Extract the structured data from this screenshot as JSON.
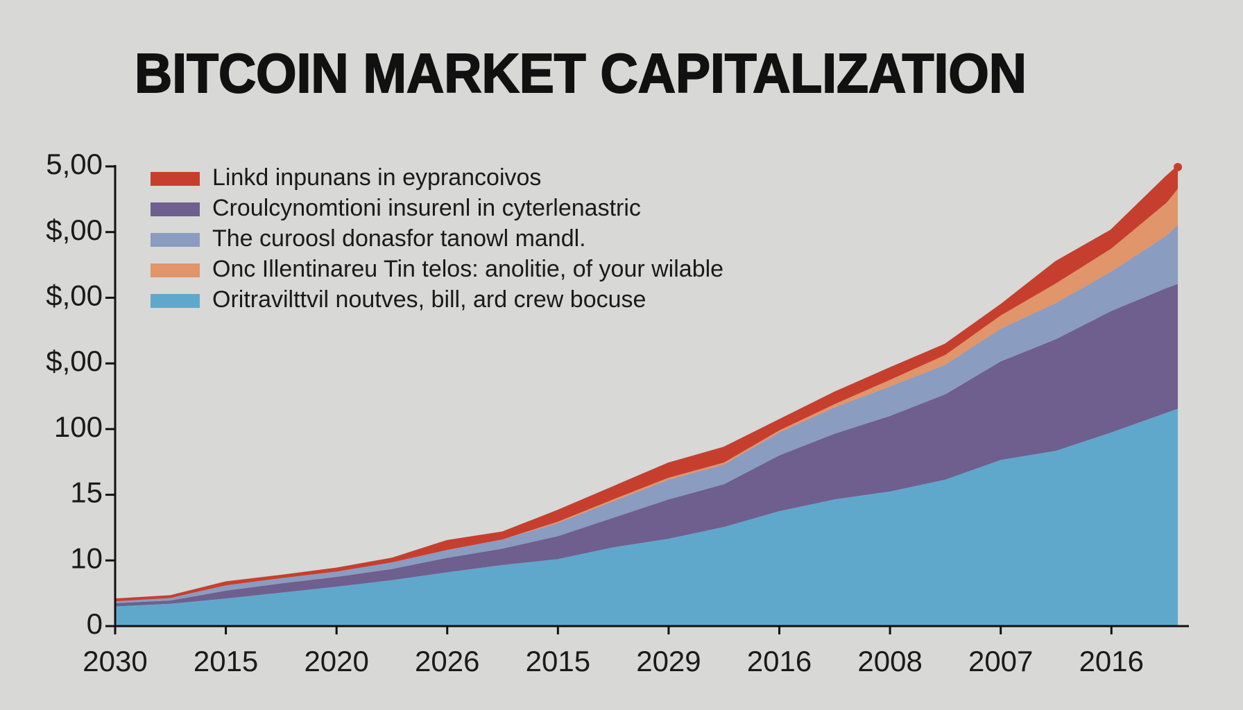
{
  "chart_data": {
    "type": "stacked_area",
    "title": "BITCOIN MARKET CAPITALIZATION",
    "x": [
      0,
      0.5,
      1,
      1.5,
      2,
      2.5,
      3,
      3.5,
      4,
      4.5,
      5,
      5.5,
      6,
      6.5,
      7,
      7.5,
      8,
      8.5,
      9,
      9.5,
      9.6
    ],
    "xlim": [
      0,
      9.7
    ],
    "xticks": [
      {
        "value": 0,
        "label": "2030"
      },
      {
        "value": 1,
        "label": "2015"
      },
      {
        "value": 2,
        "label": "2020"
      },
      {
        "value": 3,
        "label": "2026"
      },
      {
        "value": 4,
        "label": "2015"
      },
      {
        "value": 5,
        "label": "2029"
      },
      {
        "value": 6,
        "label": "2016"
      },
      {
        "value": 7,
        "label": "2008"
      },
      {
        "value": 8,
        "label": "2007"
      },
      {
        "value": 9,
        "label": "2016"
      }
    ],
    "ylim": [
      0,
      7
    ],
    "yticks": [
      {
        "value": 0,
        "label": "0"
      },
      {
        "value": 1,
        "label": "10"
      },
      {
        "value": 2,
        "label": "15"
      },
      {
        "value": 3,
        "label": "100"
      },
      {
        "value": 4,
        "label": "$,00"
      },
      {
        "value": 5,
        "label": "$,00"
      },
      {
        "value": 6,
        "label": "$,00"
      },
      {
        "value": 7,
        "label": "5,00"
      }
    ],
    "stack_order": [
      4,
      1,
      2,
      3,
      0
    ],
    "series": [
      {
        "name": "Linkd inpunans in eyprancoivos",
        "color": "#c63f2e",
        "values": [
          0.02,
          0.02,
          0.04,
          0.03,
          0.04,
          0.05,
          0.13,
          0.1,
          0.16,
          0.18,
          0.21,
          0.22,
          0.15,
          0.17,
          0.17,
          0.15,
          0.15,
          0.32,
          0.27,
          0.39,
          0.33
        ]
      },
      {
        "name": "Croulcynomtioni insurenl in cyterlenastric",
        "color": "#6e5f8e",
        "values": [
          0.05,
          0.05,
          0.12,
          0.14,
          0.15,
          0.17,
          0.22,
          0.25,
          0.35,
          0.45,
          0.6,
          0.65,
          0.85,
          1.0,
          1.15,
          1.3,
          1.5,
          1.7,
          1.85,
          1.9,
          1.9
        ]
      },
      {
        "name": "The curoosl donasfor tanowl mandl.",
        "color": "#8a9cc0",
        "values": [
          0.03,
          0.04,
          0.08,
          0.08,
          0.08,
          0.1,
          0.12,
          0.14,
          0.2,
          0.25,
          0.3,
          0.3,
          0.35,
          0.4,
          0.45,
          0.45,
          0.5,
          0.55,
          0.6,
          0.8,
          0.9
        ]
      },
      {
        "name": "Onc Illentinareu Tin telos: anolitie, of your wilable",
        "color": "#e0956a",
        "values": [
          0,
          0,
          0,
          0,
          0,
          0,
          0,
          0,
          0.02,
          0.03,
          0.03,
          0.03,
          0.03,
          0.05,
          0.1,
          0.15,
          0.2,
          0.3,
          0.35,
          0.5,
          0.55
        ]
      },
      {
        "name": "Oritravilttvil noutves, bill, ard crew bocuse",
        "color": "#5fa8cc",
        "values": [
          0.3,
          0.34,
          0.42,
          0.51,
          0.6,
          0.7,
          0.82,
          0.93,
          1.02,
          1.2,
          1.33,
          1.51,
          1.75,
          1.93,
          2.05,
          2.23,
          2.53,
          2.67,
          2.95,
          3.25,
          3.31
        ]
      }
    ]
  }
}
